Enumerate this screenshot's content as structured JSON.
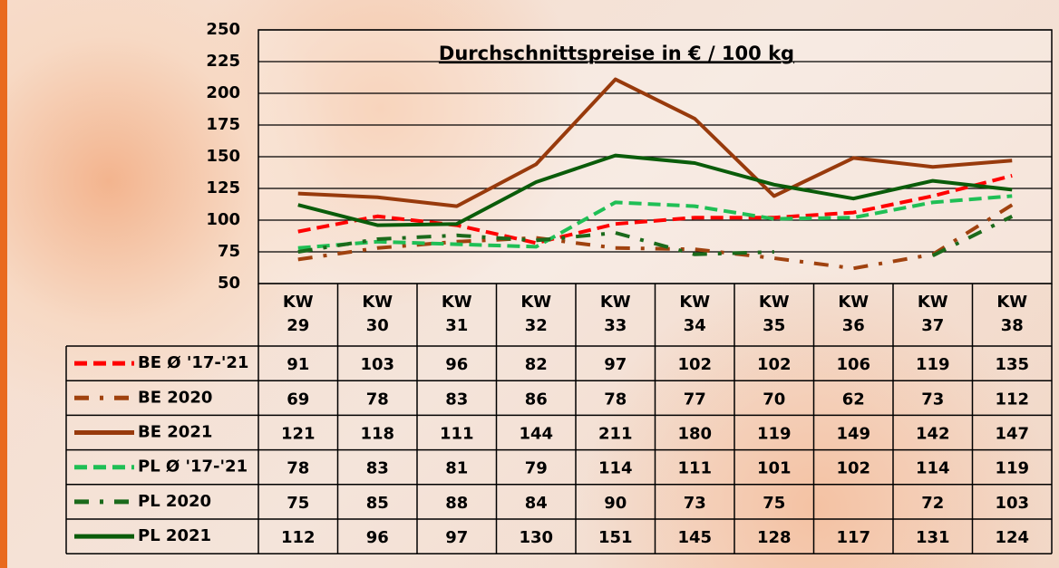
{
  "chart_data": {
    "type": "line",
    "title": "Durchschnittspreise in € / 100 kg",
    "categories": [
      "KW 29",
      "KW 30",
      "KW 31",
      "KW 32",
      "KW 33",
      "KW 34",
      "KW 35",
      "KW 36",
      "KW 37",
      "KW 38"
    ],
    "ylim": [
      50,
      250
    ],
    "yticks": [
      50,
      75,
      100,
      125,
      150,
      175,
      200,
      225,
      250
    ],
    "grid": true,
    "series": [
      {
        "name": "BE Ø '17-'21",
        "color": "#ff0000",
        "style": "dashed",
        "values": [
          91,
          103,
          96,
          82,
          97,
          102,
          102,
          106,
          119,
          135
        ]
      },
      {
        "name": "BE 2020",
        "color": "#a0420f",
        "style": "dashdot",
        "values": [
          69,
          78,
          83,
          86,
          78,
          77,
          70,
          62,
          73,
          112
        ]
      },
      {
        "name": "BE 2021",
        "color": "#983a0c",
        "style": "solid",
        "values": [
          121,
          118,
          111,
          144,
          211,
          180,
          119,
          149,
          142,
          147
        ]
      },
      {
        "name": "PL Ø '17-'21",
        "color": "#1fbf55",
        "style": "dashed",
        "values": [
          78,
          83,
          81,
          79,
          114,
          111,
          101,
          102,
          114,
          119
        ]
      },
      {
        "name": "PL 2020",
        "color": "#1b6a1b",
        "style": "dashdot",
        "values": [
          75,
          85,
          88,
          84,
          90,
          73,
          75,
          null,
          72,
          103
        ]
      },
      {
        "name": "PL 2021",
        "color": "#0a5c0a",
        "style": "solid",
        "values": [
          112,
          96,
          97,
          130,
          151,
          145,
          128,
          117,
          131,
          124
        ]
      }
    ]
  }
}
